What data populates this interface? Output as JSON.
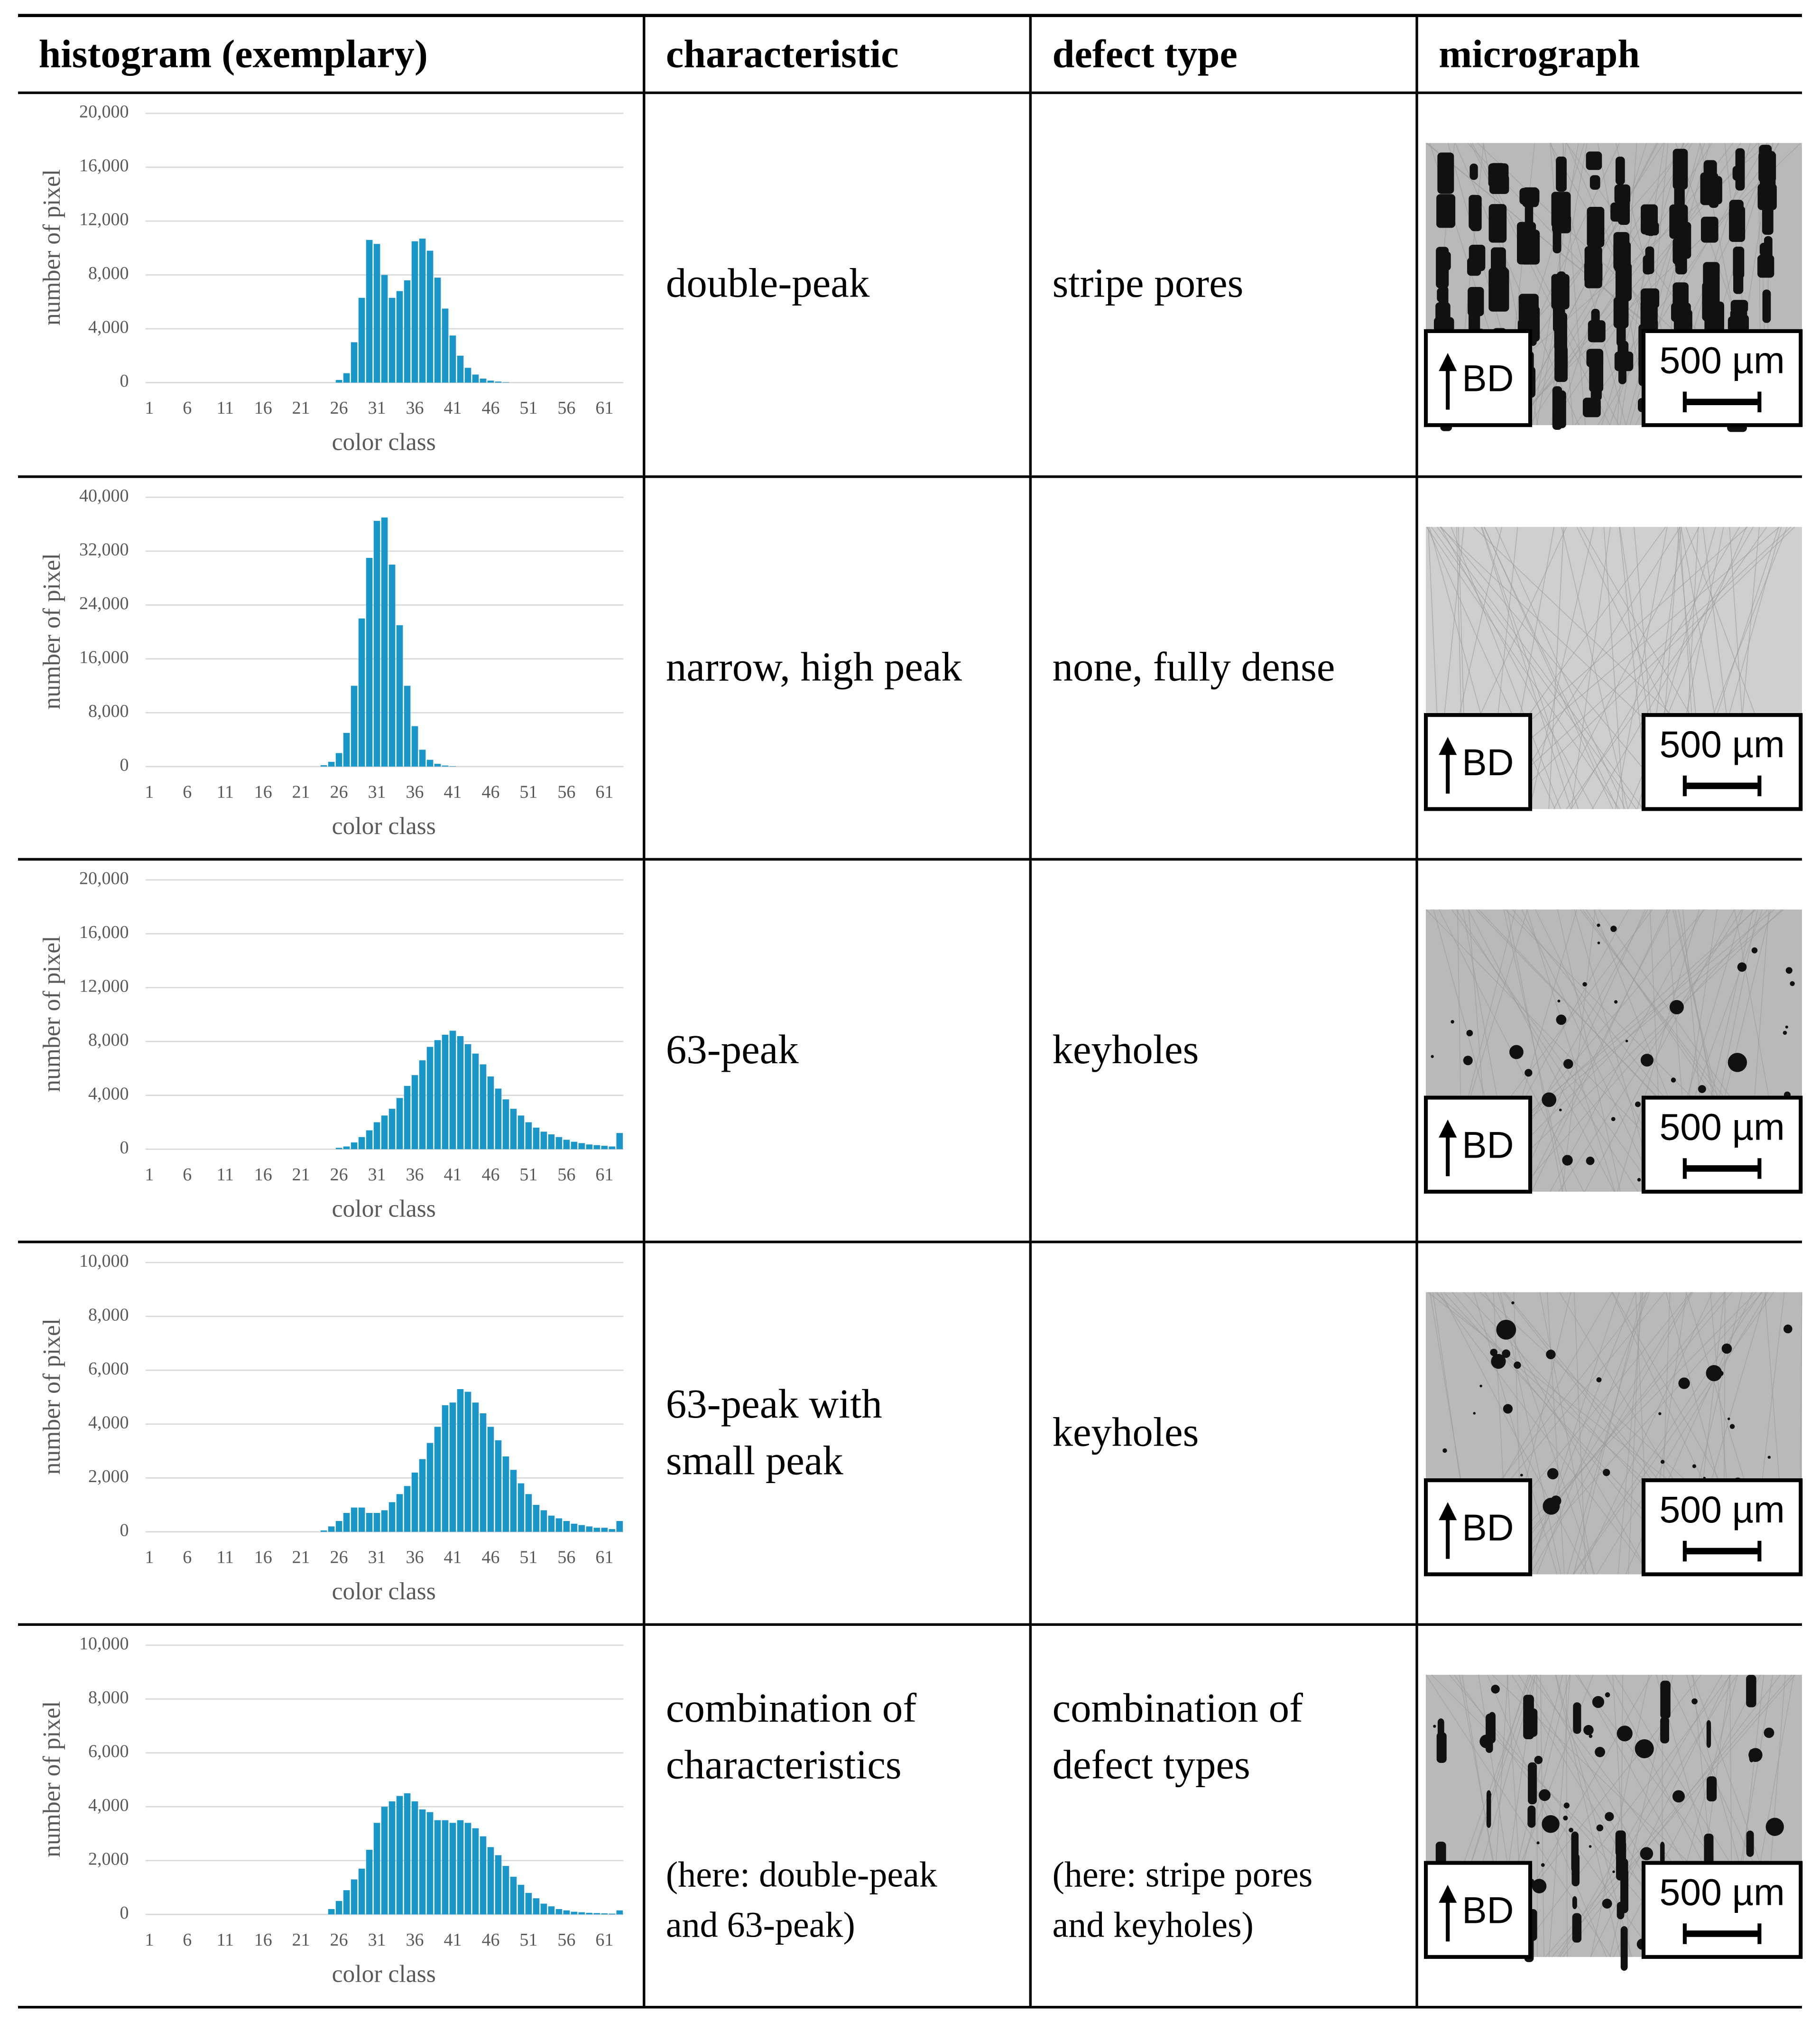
{
  "table": {
    "header": [
      "histogram (exemplary)",
      "characteristic",
      "defect type",
      "micrograph"
    ],
    "rows": [
      {
        "histogram": {
          "type": "bar",
          "ylabel": "number of pixel",
          "xlabel": "color class",
          "color": "#1a96c8",
          "grid": true,
          "x": [
            1,
            2,
            3,
            4,
            5,
            6,
            7,
            8,
            9,
            10,
            11,
            12,
            13,
            14,
            15,
            16,
            17,
            18,
            19,
            20,
            21,
            22,
            23,
            24,
            25,
            26,
            27,
            28,
            29,
            30,
            31,
            32,
            33,
            34,
            35,
            36,
            37,
            38,
            39,
            40,
            41,
            42,
            43,
            44,
            45,
            46,
            47,
            48,
            49,
            50,
            51,
            52,
            53,
            54,
            55,
            56,
            57,
            58,
            59,
            60,
            61,
            62,
            63
          ],
          "values": [
            0,
            0,
            0,
            0,
            0,
            0,
            0,
            0,
            0,
            0,
            0,
            0,
            0,
            0,
            0,
            0,
            0,
            0,
            0,
            0,
            0,
            0,
            0,
            0,
            0,
            200,
            700,
            3000,
            6300,
            10600,
            10300,
            8000,
            6300,
            6800,
            7600,
            10500,
            10700,
            9800,
            7800,
            5500,
            3500,
            2000,
            1100,
            600,
            300,
            150,
            80,
            30,
            0,
            0,
            0,
            0,
            0,
            0,
            0,
            0,
            0,
            0,
            0,
            0,
            0,
            0,
            0
          ],
          "xlim": [
            0.5,
            63.5
          ],
          "xticks": [
            1,
            6,
            11,
            16,
            21,
            26,
            31,
            36,
            41,
            46,
            51,
            56,
            61
          ],
          "ylim": [
            0,
            20000
          ],
          "yticks": [
            0,
            {
              "value": 4000,
              "label": "4,000"
            },
            {
              "value": 8000,
              "label": "8,000"
            },
            {
              "value": 12000,
              "label": "12,000"
            },
            {
              "value": 16000,
              "label": "16,000"
            },
            {
              "value": 20000,
              "label": "20,000"
            }
          ]
        },
        "characteristic": {
          "lines": [
            "double-peak"
          ]
        },
        "defect_type": {
          "lines": [
            "stripe pores"
          ]
        },
        "micrograph": {
          "direction": "BD",
          "scale": "500 µm"
        }
      },
      {
        "histogram": {
          "type": "bar",
          "ylabel": "number of pixel",
          "xlabel": "color class",
          "color": "#1a96c8",
          "grid": true,
          "x": [
            1,
            2,
            3,
            4,
            5,
            6,
            7,
            8,
            9,
            10,
            11,
            12,
            13,
            14,
            15,
            16,
            17,
            18,
            19,
            20,
            21,
            22,
            23,
            24,
            25,
            26,
            27,
            28,
            29,
            30,
            31,
            32,
            33,
            34,
            35,
            36,
            37,
            38,
            39,
            40,
            41,
            42,
            43,
            44,
            45,
            46,
            47,
            48,
            49,
            50,
            51,
            52,
            53,
            54,
            55,
            56,
            57,
            58,
            59,
            60,
            61,
            62,
            63
          ],
          "values": [
            0,
            0,
            0,
            0,
            0,
            0,
            0,
            0,
            0,
            0,
            0,
            0,
            0,
            0,
            0,
            0,
            0,
            0,
            0,
            0,
            0,
            0,
            0,
            200,
            700,
            2000,
            5000,
            12000,
            22000,
            31000,
            36500,
            37000,
            30000,
            21000,
            12000,
            6000,
            2500,
            1000,
            400,
            150,
            50,
            0,
            0,
            0,
            0,
            0,
            0,
            0,
            0,
            0,
            0,
            0,
            0,
            0,
            0,
            0,
            0,
            0,
            0,
            0,
            0,
            0,
            0
          ],
          "xlim": [
            0.5,
            63.5
          ],
          "xticks": [
            1,
            6,
            11,
            16,
            21,
            26,
            31,
            36,
            41,
            46,
            51,
            56,
            61
          ],
          "ylim": [
            0,
            40000
          ],
          "yticks": [
            0,
            {
              "value": 8000,
              "label": "8,000"
            },
            {
              "value": 16000,
              "label": "16,000"
            },
            {
              "value": 24000,
              "label": "24,000"
            },
            {
              "value": 32000,
              "label": "32,000"
            },
            {
              "value": 40000,
              "label": "40,000"
            }
          ]
        },
        "characteristic": {
          "lines": [
            "narrow, high peak"
          ]
        },
        "defect_type": {
          "lines": [
            "none, fully dense"
          ]
        },
        "micrograph": {
          "direction": "BD",
          "scale": "500 µm"
        }
      },
      {
        "histogram": {
          "type": "bar",
          "ylabel": "number of pixel",
          "xlabel": "color class",
          "color": "#1a96c8",
          "grid": true,
          "x": [
            1,
            2,
            3,
            4,
            5,
            6,
            7,
            8,
            9,
            10,
            11,
            12,
            13,
            14,
            15,
            16,
            17,
            18,
            19,
            20,
            21,
            22,
            23,
            24,
            25,
            26,
            27,
            28,
            29,
            30,
            31,
            32,
            33,
            34,
            35,
            36,
            37,
            38,
            39,
            40,
            41,
            42,
            43,
            44,
            45,
            46,
            47,
            48,
            49,
            50,
            51,
            52,
            53,
            54,
            55,
            56,
            57,
            58,
            59,
            60,
            61,
            62,
            63
          ],
          "values": [
            0,
            0,
            0,
            0,
            0,
            0,
            0,
            0,
            0,
            0,
            0,
            0,
            0,
            0,
            0,
            0,
            0,
            0,
            0,
            0,
            0,
            0,
            0,
            0,
            0,
            100,
            200,
            500,
            900,
            1400,
            2000,
            2500,
            3000,
            3800,
            4700,
            5500,
            6600,
            7600,
            8100,
            8500,
            8800,
            8400,
            7800,
            7100,
            6300,
            5400,
            4500,
            3700,
            3000,
            2500,
            2000,
            1600,
            1300,
            1100,
            900,
            700,
            550,
            450,
            350,
            300,
            250,
            200,
            1200
          ],
          "xlim": [
            0.5,
            63.5
          ],
          "xticks": [
            1,
            6,
            11,
            16,
            21,
            26,
            31,
            36,
            41,
            46,
            51,
            56,
            61
          ],
          "ylim": [
            0,
            20000
          ],
          "yticks": [
            0,
            {
              "value": 4000,
              "label": "4,000"
            },
            {
              "value": 8000,
              "label": "8,000"
            },
            {
              "value": 12000,
              "label": "12,000"
            },
            {
              "value": 16000,
              "label": "16,000"
            },
            {
              "value": 20000,
              "label": "20,000"
            }
          ]
        },
        "characteristic": {
          "lines": [
            "63-peak"
          ]
        },
        "defect_type": {
          "lines": [
            "keyholes"
          ]
        },
        "micrograph": {
          "direction": "BD",
          "scale": "500 µm"
        }
      },
      {
        "histogram": {
          "type": "bar",
          "ylabel": "number of pixel",
          "xlabel": "color class",
          "color": "#1a96c8",
          "grid": true,
          "x": [
            1,
            2,
            3,
            4,
            5,
            6,
            7,
            8,
            9,
            10,
            11,
            12,
            13,
            14,
            15,
            16,
            17,
            18,
            19,
            20,
            21,
            22,
            23,
            24,
            25,
            26,
            27,
            28,
            29,
            30,
            31,
            32,
            33,
            34,
            35,
            36,
            37,
            38,
            39,
            40,
            41,
            42,
            43,
            44,
            45,
            46,
            47,
            48,
            49,
            50,
            51,
            52,
            53,
            54,
            55,
            56,
            57,
            58,
            59,
            60,
            61,
            62,
            63
          ],
          "values": [
            0,
            0,
            0,
            0,
            0,
            0,
            0,
            0,
            0,
            0,
            0,
            0,
            0,
            0,
            0,
            0,
            0,
            0,
            0,
            0,
            0,
            0,
            0,
            50,
            200,
            400,
            700,
            900,
            900,
            700,
            700,
            800,
            1100,
            1400,
            1700,
            2200,
            2700,
            3300,
            3900,
            4700,
            4800,
            5300,
            5200,
            4800,
            4400,
            3900,
            3400,
            2800,
            2300,
            1800,
            1400,
            1000,
            800,
            600,
            500,
            400,
            300,
            250,
            200,
            150,
            150,
            100,
            400
          ],
          "xlim": [
            0.5,
            63.5
          ],
          "xticks": [
            1,
            6,
            11,
            16,
            21,
            26,
            31,
            36,
            41,
            46,
            51,
            56,
            61
          ],
          "ylim": [
            0,
            10000
          ],
          "yticks": [
            0,
            {
              "value": 2000,
              "label": "2,000"
            },
            {
              "value": 4000,
              "label": "4,000"
            },
            {
              "value": 6000,
              "label": "6,000"
            },
            {
              "value": 8000,
              "label": "8,000"
            },
            {
              "value": 10000,
              "label": "10,000"
            }
          ]
        },
        "characteristic": {
          "lines": [
            "63-peak with",
            "small peak"
          ]
        },
        "defect_type": {
          "lines": [
            "keyholes"
          ]
        },
        "micrograph": {
          "direction": "BD",
          "scale": "500 µm"
        }
      },
      {
        "histogram": {
          "type": "bar",
          "ylabel": "number of pixel",
          "xlabel": "color class",
          "color": "#1a96c8",
          "grid": true,
          "x": [
            1,
            2,
            3,
            4,
            5,
            6,
            7,
            8,
            9,
            10,
            11,
            12,
            13,
            14,
            15,
            16,
            17,
            18,
            19,
            20,
            21,
            22,
            23,
            24,
            25,
            26,
            27,
            28,
            29,
            30,
            31,
            32,
            33,
            34,
            35,
            36,
            37,
            38,
            39,
            40,
            41,
            42,
            43,
            44,
            45,
            46,
            47,
            48,
            49,
            50,
            51,
            52,
            53,
            54,
            55,
            56,
            57,
            58,
            59,
            60,
            61,
            62,
            63
          ],
          "values": [
            0,
            0,
            0,
            0,
            0,
            0,
            0,
            0,
            0,
            0,
            0,
            0,
            0,
            0,
            0,
            0,
            0,
            0,
            0,
            0,
            0,
            0,
            0,
            0,
            200,
            500,
            900,
            1300,
            1700,
            2400,
            3400,
            4000,
            4200,
            4400,
            4500,
            4200,
            3900,
            3800,
            3500,
            3500,
            3400,
            3500,
            3400,
            3200,
            2900,
            2500,
            2200,
            1800,
            1400,
            1100,
            800,
            600,
            400,
            300,
            200,
            150,
            100,
            80,
            60,
            50,
            40,
            30,
            150
          ],
          "xlim": [
            0.5,
            63.5
          ],
          "xticks": [
            1,
            6,
            11,
            16,
            21,
            26,
            31,
            36,
            41,
            46,
            51,
            56,
            61
          ],
          "ylim": [
            0,
            10000
          ],
          "yticks": [
            0,
            {
              "value": 2000,
              "label": "2,000"
            },
            {
              "value": 4000,
              "label": "4,000"
            },
            {
              "value": 6000,
              "label": "6,000"
            },
            {
              "value": 8000,
              "label": "8,000"
            },
            {
              "value": 10000,
              "label": "10,000"
            }
          ]
        },
        "characteristic": {
          "lines": [
            "combination of",
            "characteristics"
          ],
          "note": [
            "(here: double-peak",
            "and 63-peak)"
          ]
        },
        "defect_type": {
          "lines": [
            "combination of",
            "defect types"
          ],
          "note": [
            "(here: stripe pores",
            "and keyholes)"
          ]
        },
        "micrograph": {
          "direction": "BD",
          "scale": "500 µm"
        }
      }
    ]
  }
}
